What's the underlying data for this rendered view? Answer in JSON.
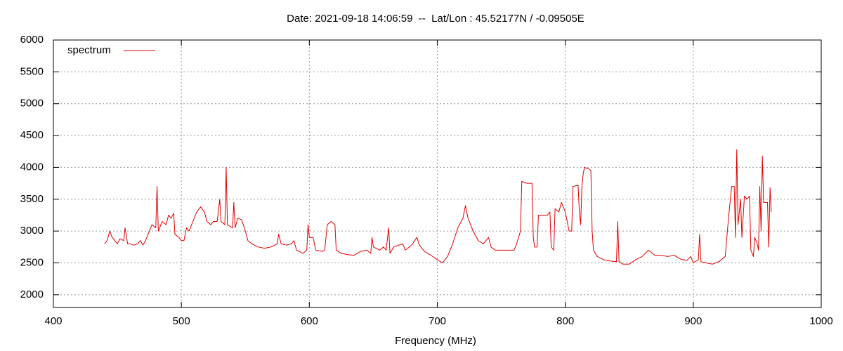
{
  "chart_data": {
    "type": "line",
    "title": "Date: 2021-09-18 14:06:59  --  Lat/Lon : 45.52177N / -0.09505E",
    "xlabel": "Frequency (MHz)",
    "x": [
      440,
      442,
      444,
      446,
      448,
      450,
      452,
      455,
      456,
      458,
      460,
      463,
      466,
      468,
      470,
      472,
      475,
      477,
      480,
      481,
      482,
      485,
      488,
      490,
      492,
      494,
      495,
      498,
      500,
      502,
      504,
      506,
      508,
      510,
      512,
      515,
      518,
      520,
      523,
      525,
      528,
      530,
      531,
      534,
      535,
      536,
      540,
      541,
      542,
      544,
      547,
      550,
      552,
      555,
      560,
      565,
      570,
      575,
      576,
      578,
      582,
      586,
      588,
      590,
      595,
      598,
      599,
      600,
      603,
      605,
      610,
      612,
      614,
      617,
      620,
      621,
      625,
      630,
      635,
      640,
      645,
      648,
      649,
      650,
      655,
      658,
      660,
      662,
      663,
      666,
      670,
      673,
      675,
      680,
      684,
      686,
      690,
      695,
      700,
      704,
      708,
      712,
      716,
      720,
      722,
      724,
      728,
      732,
      736,
      740,
      742,
      745,
      750,
      755,
      760,
      762,
      765,
      766,
      770,
      774,
      775,
      776,
      778,
      779,
      782,
      786,
      788,
      789,
      791,
      792,
      795,
      797,
      800,
      802,
      803,
      805,
      806,
      810,
      811,
      812,
      813,
      814,
      815,
      818,
      820,
      821,
      822,
      825,
      830,
      835,
      840,
      841,
      842,
      845,
      850,
      855,
      860,
      865,
      870,
      875,
      880,
      885,
      890,
      895,
      898,
      900,
      904,
      905,
      906,
      910,
      915,
      920,
      925,
      926,
      928,
      930,
      932,
      933,
      934,
      935,
      937,
      938,
      940,
      942,
      944,
      945,
      947,
      948,
      950,
      951,
      952,
      953,
      954,
      955,
      958,
      959,
      960,
      961
    ],
    "series": [
      {
        "name": "spectrum",
        "color": "#e00000",
        "values": [
          2800,
          2850,
          3000,
          2900,
          2850,
          2800,
          2880,
          2850,
          3050,
          2800,
          2800,
          2780,
          2800,
          2850,
          2780,
          2850,
          3000,
          3100,
          3050,
          3700,
          3000,
          3150,
          3100,
          3250,
          3200,
          3280,
          2950,
          2900,
          2850,
          2850,
          3050,
          3000,
          3100,
          3200,
          3300,
          3380,
          3300,
          3150,
          3100,
          3150,
          3150,
          3500,
          3150,
          3100,
          4000,
          3100,
          3050,
          3450,
          3050,
          3200,
          3180,
          3000,
          2850,
          2800,
          2750,
          2730,
          2750,
          2800,
          2950,
          2800,
          2780,
          2800,
          2850,
          2700,
          2650,
          2700,
          3100,
          2900,
          2900,
          2700,
          2680,
          2700,
          3100,
          3150,
          3100,
          2700,
          2650,
          2630,
          2620,
          2680,
          2700,
          2650,
          2900,
          2750,
          2700,
          2750,
          2700,
          3050,
          2650,
          2750,
          2780,
          2800,
          2700,
          2780,
          2900,
          2780,
          2680,
          2620,
          2550,
          2500,
          2600,
          2800,
          3050,
          3200,
          3400,
          3200,
          3000,
          2850,
          2800,
          2900,
          2750,
          2700,
          2700,
          2700,
          2700,
          2800,
          3000,
          3780,
          3750,
          3750,
          2900,
          2750,
          2750,
          3250,
          3250,
          3250,
          3300,
          2750,
          2700,
          3350,
          3300,
          3450,
          3300,
          3100,
          3000,
          3000,
          3700,
          3720,
          3300,
          3100,
          3700,
          3900,
          4000,
          3980,
          3950,
          3000,
          2700,
          2600,
          2550,
          2530,
          2520,
          3150,
          2520,
          2480,
          2480,
          2550,
          2600,
          2700,
          2620,
          2620,
          2600,
          2620,
          2560,
          2540,
          2600,
          2500,
          2550,
          2950,
          2520,
          2500,
          2480,
          2520,
          2600,
          2850,
          3300,
          3700,
          3700,
          2900,
          4280,
          3100,
          3500,
          2900,
          3550,
          3500,
          3550,
          2700,
          2600,
          2900,
          2800,
          2700,
          3700,
          3000,
          4180,
          3450,
          3450,
          2750,
          3680,
          3300
        ]
      }
    ],
    "xlim": [
      400,
      1000
    ],
    "xticks": [
      400,
      500,
      600,
      700,
      800,
      900,
      1000
    ],
    "ylim": [
      1800,
      6000
    ],
    "yticks": [
      2000,
      2500,
      3000,
      3500,
      4000,
      4500,
      5000,
      5500,
      6000
    ],
    "grid": true,
    "legend": "top-left"
  }
}
